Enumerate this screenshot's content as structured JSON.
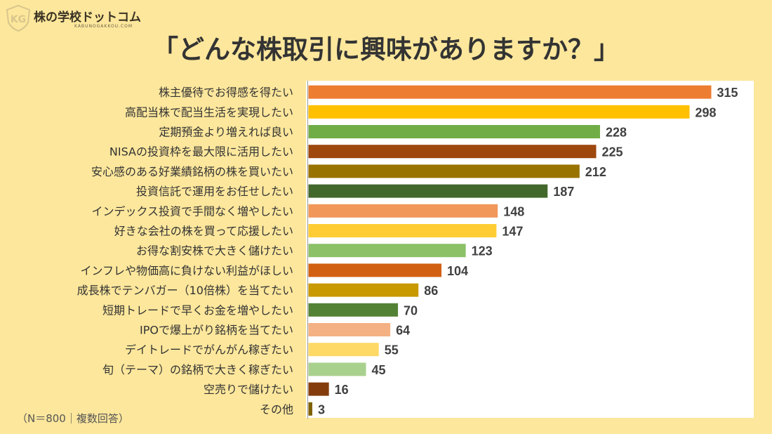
{
  "header": {
    "logo_name": "株の学校ドットコム",
    "logo_sub": "KABUNOGAKKOU.COM",
    "logo_mark_text": "KG"
  },
  "title": "「どんな株取引に興味がありますか？」",
  "note": "（N＝800｜複数回答）",
  "chart_data": {
    "type": "bar",
    "orientation": "horizontal",
    "title": "「どんな株取引に興味がありますか？」",
    "xlabel": "",
    "ylabel": "",
    "categories": [
      "株主優待でお得感を得たい",
      "高配当株で配当生活を実現したい",
      "定期預金より増えれば良い",
      "NISAの投資枠を最大限に活用したい",
      "安心感のある好業績銘柄の株を買いたい",
      "投資信託で運用をお任せしたい",
      "インデックス投資で手間なく増やしたい",
      "好きな会社の株を買って応援したい",
      "お得な割安株で大きく儲けたい",
      "インフレや物価高に負けない利益がほしい",
      "成長株でテンバガー（10倍株）を当てたい",
      "短期トレードで早くお金を増やしたい",
      "IPOで爆上がり銘柄を当てたい",
      "デイトレードでがんがん稼ぎたい",
      "旬（テーマ）の銘柄で大きく稼ぎたい",
      "空売りで儲けたい",
      "その他"
    ],
    "values": [
      315,
      298,
      228,
      225,
      212,
      187,
      148,
      147,
      123,
      104,
      86,
      70,
      64,
      55,
      45,
      16,
      3
    ],
    "colors": [
      "#ed7d31",
      "#ffc000",
      "#70ad47",
      "#9e480e",
      "#997300",
      "#43682b",
      "#f1975a",
      "#ffcd33",
      "#8cc168",
      "#d26012",
      "#c89900",
      "#548235",
      "#f4b183",
      "#ffd966",
      "#a9d18e",
      "#843c0c",
      "#7f6000"
    ],
    "value_labels": true,
    "legend": "none",
    "grid": false
  }
}
